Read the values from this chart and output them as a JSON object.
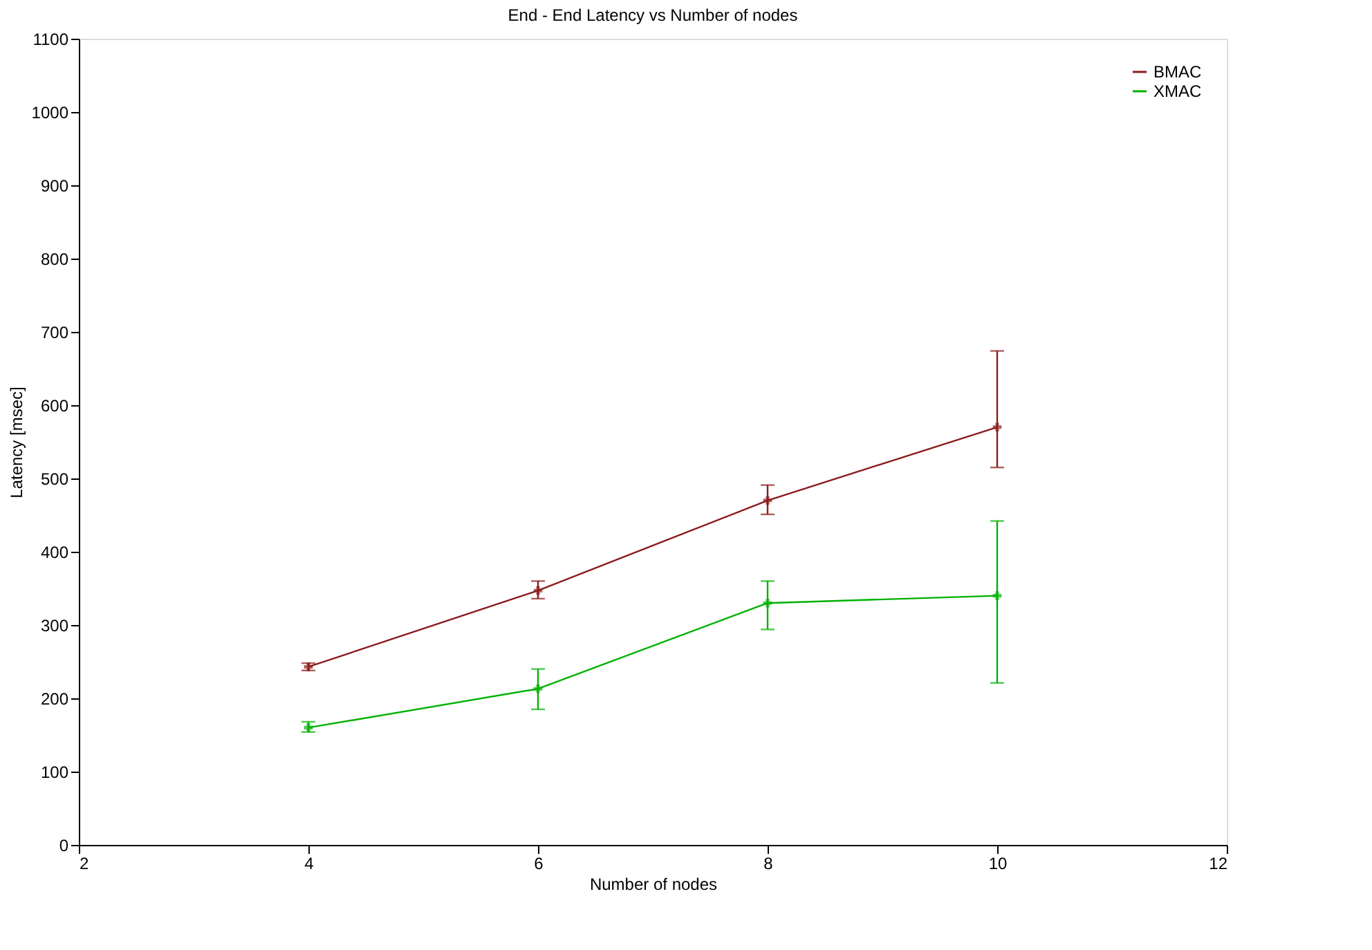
{
  "chart_data": {
    "type": "line",
    "title": "End - End Latency vs Number of nodes",
    "xlabel": "Number of nodes",
    "ylabel": "Latency [msec]",
    "x": [
      4,
      6,
      8,
      10
    ],
    "series": [
      {
        "name": "BMAC",
        "color": "#8b1a1a",
        "values": [
          243,
          347,
          470,
          570
        ],
        "errors": [
          [
            238,
            248
          ],
          [
            336,
            360
          ],
          [
            451,
            491
          ],
          [
            515,
            674
          ]
        ]
      },
      {
        "name": "XMAC",
        "color": "#00b000",
        "values": [
          160,
          213,
          330,
          340
        ],
        "errors": [
          [
            154,
            168
          ],
          [
            185,
            240
          ],
          [
            294,
            360
          ],
          [
            221,
            442
          ]
        ]
      }
    ],
    "xlim": [
      2,
      12
    ],
    "xticks": [
      2,
      4,
      6,
      8,
      10,
      12
    ],
    "ylim": [
      0,
      1100
    ],
    "yticks": [
      0,
      100,
      200,
      300,
      400,
      500,
      600,
      700,
      800,
      900,
      1000,
      1100
    ],
    "grid": false,
    "legend": "top right",
    "marker": "cross",
    "line_style": "solid"
  }
}
